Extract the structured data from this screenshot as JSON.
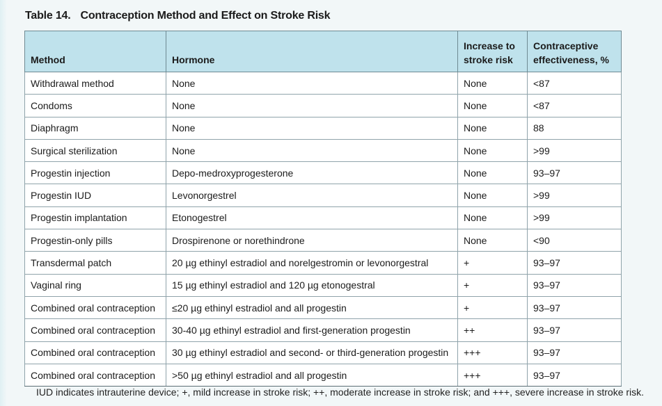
{
  "table": {
    "label": "Table 14.",
    "title": "Contraception Method and Effect on Stroke Risk",
    "headers": {
      "method": "Method",
      "hormone": "Hormone",
      "risk_line1": "Increase to",
      "risk_line2": "stroke risk",
      "eff_line1": "Contraceptive",
      "eff_line2": "effectiveness, %"
    },
    "rows": [
      {
        "method": "Withdrawal method",
        "hormone": "None",
        "risk": "None",
        "effectiveness": "<87"
      },
      {
        "method": "Condoms",
        "hormone": "None",
        "risk": "None",
        "effectiveness": "<87"
      },
      {
        "method": "Diaphragm",
        "hormone": "None",
        "risk": "None",
        "effectiveness": "88"
      },
      {
        "method": "Surgical sterilization",
        "hormone": "None",
        "risk": "None",
        "effectiveness": ">99"
      },
      {
        "method": "Progestin injection",
        "hormone": "Depo-medroxyprogesterone",
        "risk": "None",
        "effectiveness": "93–97"
      },
      {
        "method": "Progestin IUD",
        "hormone": "Levonorgestrel",
        "risk": "None",
        "effectiveness": ">99"
      },
      {
        "method": "Progestin implantation",
        "hormone": "Etonogestrel",
        "risk": "None",
        "effectiveness": ">99"
      },
      {
        "method": "Progestin-only pills",
        "hormone": "Drospirenone or norethindrone",
        "risk": "None",
        "effectiveness": "<90"
      },
      {
        "method": "Transdermal patch",
        "hormone": "20 µg ethinyl estradiol and norelgestromin or levonorgestral",
        "risk": "+",
        "effectiveness": "93–97"
      },
      {
        "method": "Vaginal ring",
        "hormone": "15 µg ethinyl estradiol and 120 µg etonogestral",
        "risk": "+",
        "effectiveness": "93–97"
      },
      {
        "method": "Combined oral contraception",
        "hormone": "≤20 µg ethinyl estradiol and all progestin",
        "risk": "+",
        "effectiveness": "93–97"
      },
      {
        "method": "Combined oral contraception",
        "hormone": "30-40 µg ethinyl estradiol and first-generation progestin",
        "risk": "++",
        "effectiveness": "93–97"
      },
      {
        "method": "Combined oral contraception",
        "hormone": "30 µg ethinyl estradiol and second- or third-generation progestin",
        "risk": "+++",
        "effectiveness": "93–97"
      },
      {
        "method": "Combined oral contraception",
        "hormone": ">50 µg ethinyl estradiol and all progestin",
        "risk": "+++",
        "effectiveness": "93–97"
      }
    ],
    "footnote": "IUD indicates intrauterine device; +, mild increase in stroke risk; ++, moderate increase in stroke risk; and +++, severe increase in stroke risk."
  }
}
